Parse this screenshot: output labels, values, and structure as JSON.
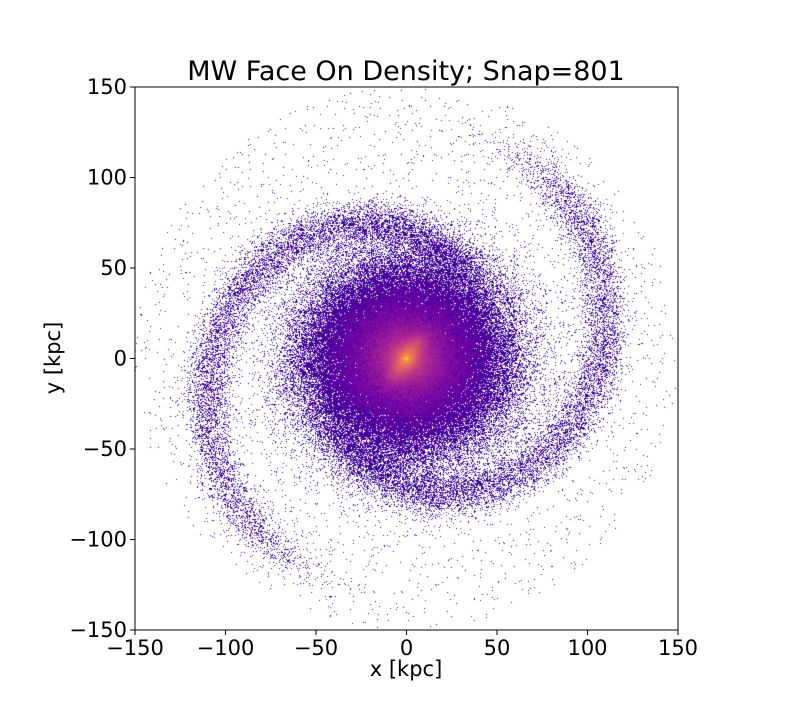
{
  "chart_data": {
    "type": "heatmap",
    "title": "MW Face On Density; Snap=801",
    "xlabel": "x [kpc]",
    "ylabel": "y [kpc]",
    "xlim": [
      -150,
      150
    ],
    "ylim": [
      -150,
      150
    ],
    "xticks": [
      -150,
      -100,
      -50,
      0,
      50,
      100,
      150
    ],
    "yticks": [
      -150,
      -100,
      -50,
      0,
      50,
      100,
      150
    ],
    "xtick_labels": [
      "−150",
      "−100",
      "−50",
      "0",
      "50",
      "100",
      "150"
    ],
    "ytick_labels": [
      "−150",
      "−100",
      "−50",
      "0",
      "50",
      "100",
      "150"
    ],
    "colormap": "plasma",
    "colormap_stops": [
      "#0d0887",
      "#6a00a8",
      "#b12a90",
      "#e16462",
      "#fca636",
      "#f0f921"
    ],
    "grid": false,
    "background": "#ffffff",
    "bar_position_angle_deg": 55
  }
}
